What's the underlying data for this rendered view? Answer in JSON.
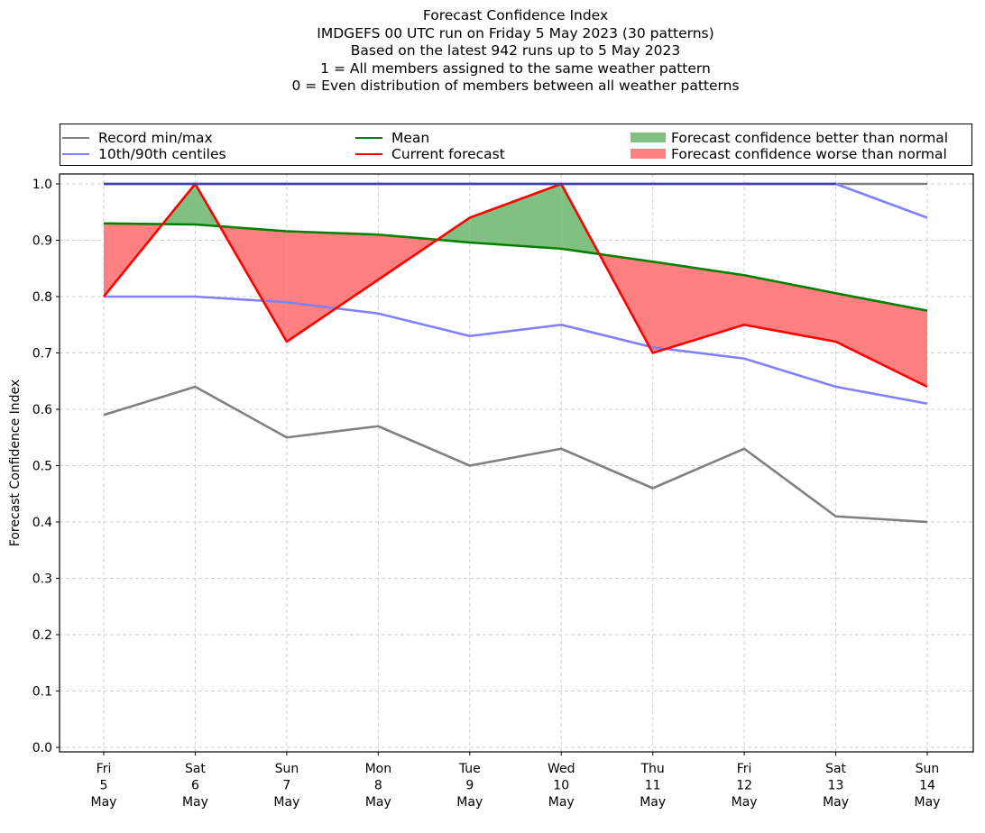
{
  "chart_data": {
    "type": "line",
    "title": "Forecast Confidence Index",
    "subtitle_lines": [
      "IMDGEFS 00 UTC run on Friday 5 May 2023 (30 patterns)",
      "Based on the latest 942 runs up to 5 May 2023",
      "1 = All members assigned to the same weather pattern",
      "0 = Even distribution of members between all weather patterns"
    ],
    "xlabel": "",
    "ylabel": "Forecast Confidence Index",
    "ylim": [
      0.0,
      1.0
    ],
    "yticks": [
      "0.0",
      "0.1",
      "0.2",
      "0.3",
      "0.4",
      "0.5",
      "0.6",
      "0.7",
      "0.8",
      "0.9",
      "1.0"
    ],
    "grid": true,
    "legend_position": "top, above plot, 3 columns",
    "categories": [
      [
        "Fri",
        "5",
        "May"
      ],
      [
        "Sat",
        "6",
        "May"
      ],
      [
        "Sun",
        "7",
        "May"
      ],
      [
        "Mon",
        "8",
        "May"
      ],
      [
        "Tue",
        "9",
        "May"
      ],
      [
        "Wed",
        "10",
        "May"
      ],
      [
        "Thu",
        "11",
        "May"
      ],
      [
        "Fri",
        "12",
        "May"
      ],
      [
        "Sat",
        "13",
        "May"
      ],
      [
        "Sun",
        "14",
        "May"
      ]
    ],
    "series": [
      {
        "name": "Record max",
        "legend": "Record min/max",
        "color": "#808080",
        "values": [
          1.0,
          1.0,
          1.0,
          1.0,
          1.0,
          1.0,
          1.0,
          1.0,
          1.0,
          1.0
        ]
      },
      {
        "name": "Record min",
        "legend": "",
        "color": "#808080",
        "values": [
          0.59,
          0.64,
          0.55,
          0.57,
          0.5,
          0.53,
          0.46,
          0.53,
          0.41,
          0.4
        ]
      },
      {
        "name": "90th centile",
        "legend": "10th/90th centiles",
        "color": "#8080ff",
        "values": [
          1.0,
          1.0,
          1.0,
          1.0,
          1.0,
          1.0,
          1.0,
          1.0,
          1.0,
          0.94
        ]
      },
      {
        "name": "10th centile",
        "legend": "",
        "color": "#8080ff",
        "values": [
          0.8,
          0.8,
          0.79,
          0.77,
          0.73,
          0.75,
          0.71,
          0.69,
          0.64,
          0.61
        ]
      },
      {
        "name": "Mean",
        "legend": "Mean",
        "color": "#008000",
        "values": [
          0.93,
          0.928,
          0.916,
          0.91,
          0.896,
          0.885,
          0.862,
          0.838,
          0.806,
          0.775
        ]
      },
      {
        "name": "Current forecast",
        "legend": "Current forecast",
        "color": "#ff0000",
        "values": [
          0.8,
          1.0,
          0.72,
          0.83,
          0.94,
          1.0,
          0.7,
          0.75,
          0.72,
          0.64
        ]
      }
    ],
    "fills": [
      {
        "legend": "Forecast confidence better than normal",
        "color": "#80c080",
        "rule": "current > mean"
      },
      {
        "legend": "Forecast confidence worse than normal",
        "color": "#ff8080",
        "rule": "current < mean"
      }
    ]
  },
  "legend": {
    "record": "Record min/max",
    "centiles": "10th/90th centiles",
    "mean": "Mean",
    "current": "Current forecast",
    "better": "Forecast confidence better than normal",
    "worse": "Forecast confidence worse than normal"
  },
  "colors": {
    "record": "#808080",
    "centiles": "#8080ff",
    "overlap": "#4040b0",
    "mean": "#008000",
    "current": "#ff0000",
    "better": "#80c080",
    "worse": "#ff8080",
    "grid": "#d0d0d0"
  }
}
